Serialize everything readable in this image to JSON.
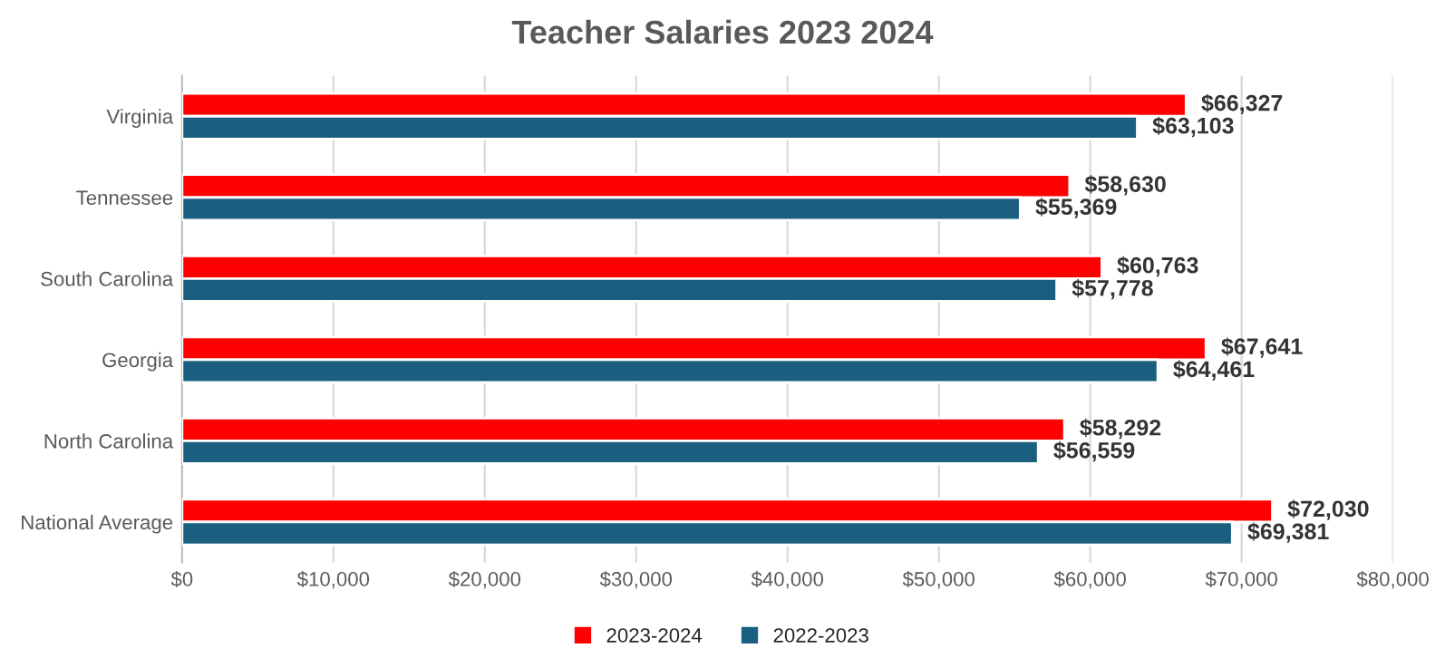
{
  "chart_data": {
    "type": "bar",
    "orientation": "horizontal",
    "title": "Teacher Salaries 2023 2024",
    "categories": [
      "Virginia",
      "Tennessee",
      "South Carolina",
      "Georgia",
      "North Carolina",
      "National Average"
    ],
    "series": [
      {
        "name": "2023-2024",
        "color": "#ff0000",
        "values": [
          66327,
          58630,
          60763,
          67641,
          58292,
          72030
        ],
        "value_labels": [
          "$66,327",
          "$58,630",
          "$60,763",
          "$67,641",
          "$58,292",
          "$72,030"
        ]
      },
      {
        "name": "2022-2023",
        "color": "#1b5f80",
        "values": [
          63103,
          55369,
          57778,
          64461,
          56559,
          69381
        ],
        "value_labels": [
          "$63,103",
          "$55,369",
          "$57,778",
          "$64,461",
          "$56,559",
          "$69,381"
        ]
      }
    ],
    "xlim": [
      0,
      80000
    ],
    "xticks": [
      {
        "value": 0,
        "label": "$0"
      },
      {
        "value": 10000,
        "label": "$10,000"
      },
      {
        "value": 20000,
        "label": "$20,000"
      },
      {
        "value": 30000,
        "label": "$30,000"
      },
      {
        "value": 40000,
        "label": "$40,000"
      },
      {
        "value": 50000,
        "label": "$50,000"
      },
      {
        "value": 60000,
        "label": "$60,000"
      },
      {
        "value": 70000,
        "label": "$70,000"
      },
      {
        "value": 80000,
        "label": "$80,000"
      }
    ],
    "grid": "x",
    "legend": "bottom"
  }
}
